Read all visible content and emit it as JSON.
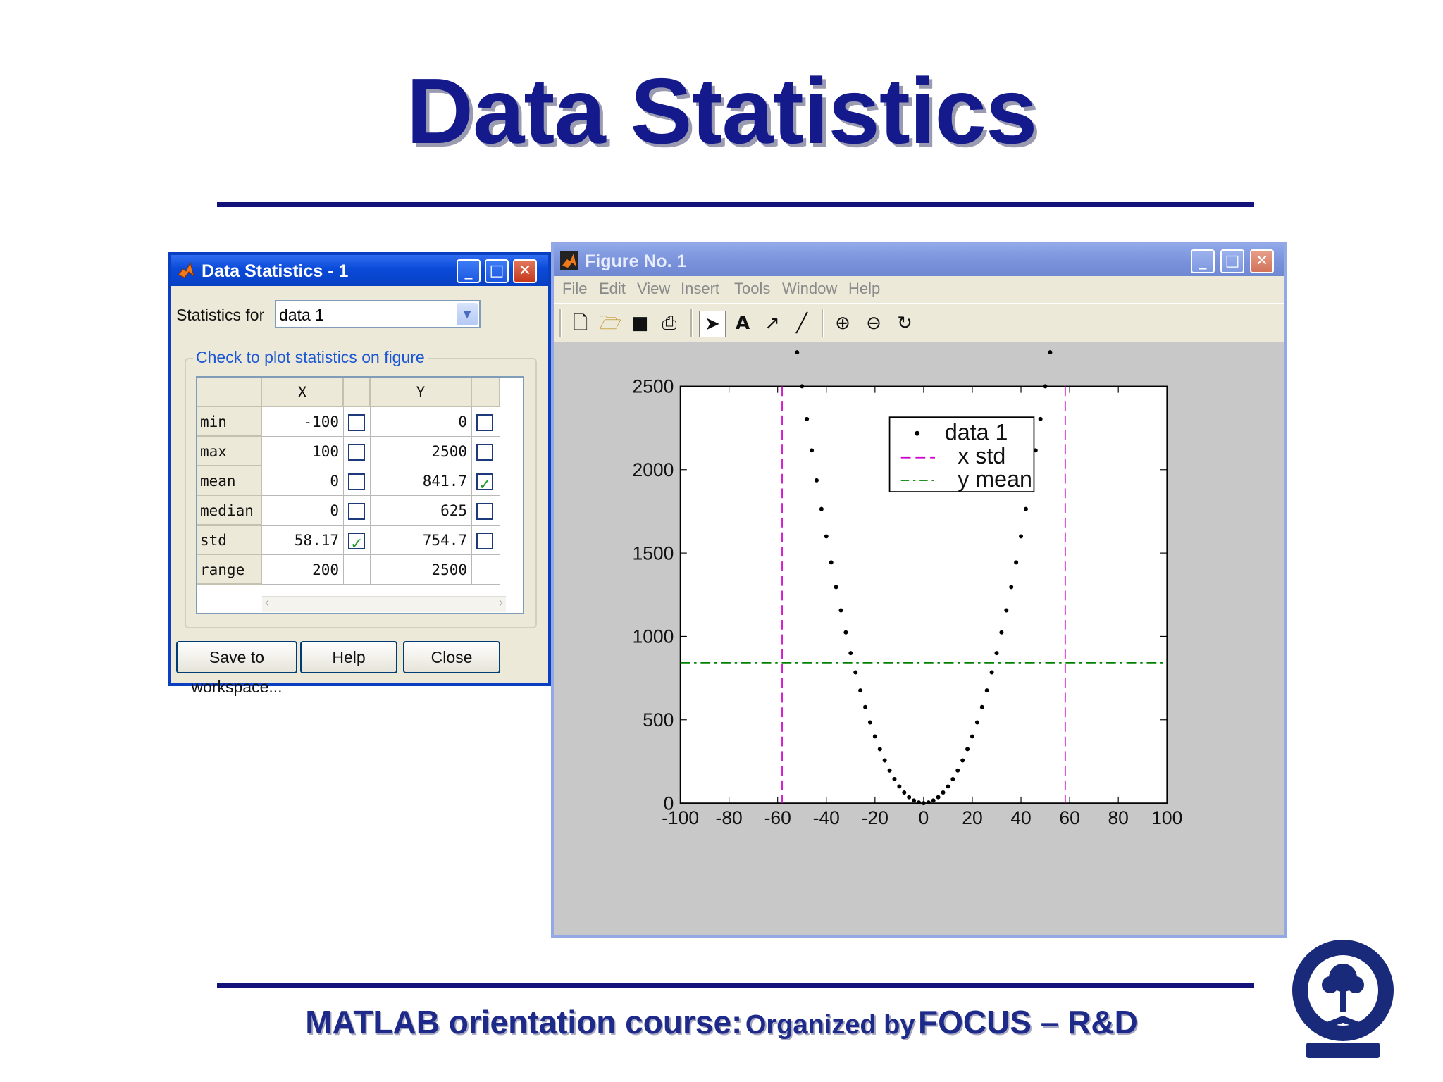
{
  "slide": {
    "title": "Data Statistics",
    "footer_main": "MATLAB orientation course:",
    "footer_org": "Organized by",
    "footer_name": "FOCUS – R&D"
  },
  "stats_window": {
    "title": "Data Statistics - 1",
    "statistics_for_label": "Statistics for",
    "statistics_for_value": "data 1",
    "group_label": "Check to plot statistics on figure",
    "columns": [
      "X",
      "Y"
    ],
    "rows": [
      {
        "name": "min",
        "x": "-100",
        "x_checked": false,
        "y": "0",
        "y_checked": false
      },
      {
        "name": "max",
        "x": "100",
        "x_checked": false,
        "y": "2500",
        "y_checked": false
      },
      {
        "name": "mean",
        "x": "0",
        "x_checked": false,
        "y": "841.7",
        "y_checked": true
      },
      {
        "name": "median",
        "x": "0",
        "x_checked": false,
        "y": "625",
        "y_checked": false
      },
      {
        "name": "std",
        "x": "58.17",
        "x_checked": true,
        "y": "754.7",
        "y_checked": false
      },
      {
        "name": "range",
        "x": "200",
        "x_checked": null,
        "y": "2500",
        "y_checked": null
      }
    ],
    "buttons": {
      "save": "Save to workspace...",
      "help": "Help",
      "close": "Close"
    }
  },
  "figure_window": {
    "title": "Figure No. 1",
    "menu": [
      "File",
      "Edit",
      "View",
      "Insert",
      "Tools",
      "Window",
      "Help"
    ],
    "toolbar_icons": [
      "new-file-icon",
      "open-folder-icon",
      "save-icon",
      "print-icon",
      "select-arrow-icon",
      "insert-text-icon",
      "insert-arrow-icon",
      "insert-line-icon",
      "zoom-in-icon",
      "zoom-out-icon",
      "rotate-icon"
    ]
  },
  "chart_data": {
    "type": "scatter",
    "function": "y = x^2",
    "x_range": [
      -100,
      100
    ],
    "point_step": 2,
    "xlim": [
      -100,
      100
    ],
    "ylim": [
      0,
      2500
    ],
    "xticks": [
      -100,
      -80,
      -60,
      -40,
      -20,
      0,
      20,
      40,
      60,
      80,
      100
    ],
    "yticks": [
      0,
      500,
      1000,
      1500,
      2000,
      2500
    ],
    "series": [
      {
        "name": "data 1",
        "style": "dots",
        "color": "#000000"
      }
    ],
    "reference_lines": [
      {
        "name": "x std",
        "orientation": "vertical",
        "values": [
          -58.17,
          58.17
        ],
        "style": "dashed",
        "color": "#cc00cc"
      },
      {
        "name": "y mean",
        "orientation": "horizontal",
        "values": [
          841.7
        ],
        "style": "dash-dot",
        "color": "#008000"
      }
    ],
    "legend": {
      "position": "top-right",
      "entries": [
        "data 1",
        "x std",
        "y mean"
      ]
    },
    "grid": false
  }
}
